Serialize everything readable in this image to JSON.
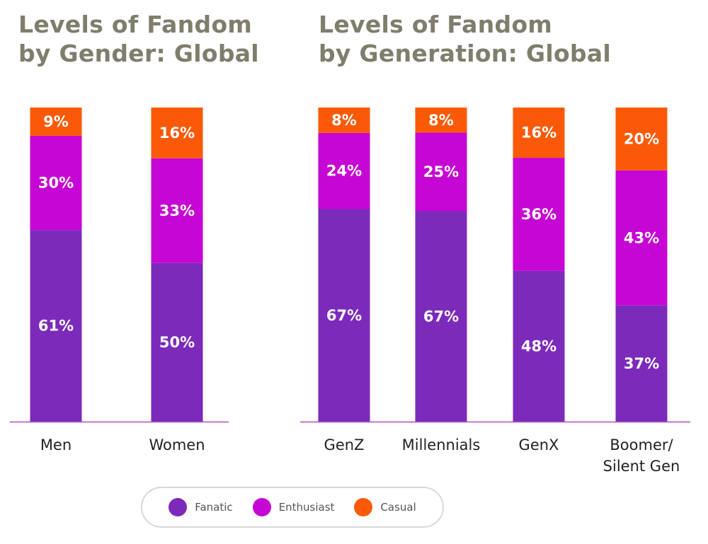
{
  "colors": {
    "fanatic": "#7c2aba",
    "enthusiast": "#c606d4",
    "casual": "#fa5a08",
    "axis": "#b24cc4"
  },
  "titles": {
    "left_line1": "Levels of Fandom",
    "left_line2": "by Gender: Global",
    "right_line1": "Levels of Fandom",
    "right_line2": "by Generation: Global"
  },
  "legend": [
    {
      "name": "Fanatic",
      "color": "#7c2aba"
    },
    {
      "name": "Enthusiast",
      "color": "#c606d4"
    },
    {
      "name": "Casual",
      "color": "#fa5a08"
    }
  ],
  "chart_data": [
    {
      "type": "bar",
      "stacked": true,
      "title": "Levels of Fandom by Gender: Global",
      "categories": [
        "Men",
        "Women"
      ],
      "series": [
        {
          "name": "Fanatic",
          "values": [
            61,
            50
          ],
          "labels": [
            "61%",
            "50%"
          ]
        },
        {
          "name": "Enthusiast",
          "values": [
            30,
            33
          ],
          "labels": [
            "30%",
            "33%"
          ]
        },
        {
          "name": "Casual",
          "values": [
            9,
            16
          ],
          "labels": [
            "9%",
            "16%"
          ]
        }
      ],
      "ylim": [
        0,
        100
      ],
      "grid": false,
      "legend_position": "bottom"
    },
    {
      "type": "bar",
      "stacked": true,
      "title": "Levels of Fandom by Generation: Global",
      "categories": [
        "GenZ",
        "Millennials",
        "GenX",
        "Boomer/\nSilent Gen"
      ],
      "category_lines": [
        [
          "GenZ"
        ],
        [
          "Millennials"
        ],
        [
          "GenX"
        ],
        [
          "Boomer/",
          "Silent Gen"
        ]
      ],
      "series": [
        {
          "name": "Fanatic",
          "values": [
            67,
            67,
            48,
            37
          ],
          "labels": [
            "67%",
            "67%",
            "48%",
            "37%"
          ]
        },
        {
          "name": "Enthusiast",
          "values": [
            24,
            25,
            36,
            43
          ],
          "labels": [
            "24%",
            "25%",
            "36%",
            "43%"
          ]
        },
        {
          "name": "Casual",
          "values": [
            8,
            8,
            16,
            20
          ],
          "labels": [
            "8%",
            "8%",
            "16%",
            "20%"
          ]
        }
      ],
      "ylim": [
        0,
        100
      ],
      "grid": false,
      "legend_position": "bottom"
    }
  ]
}
